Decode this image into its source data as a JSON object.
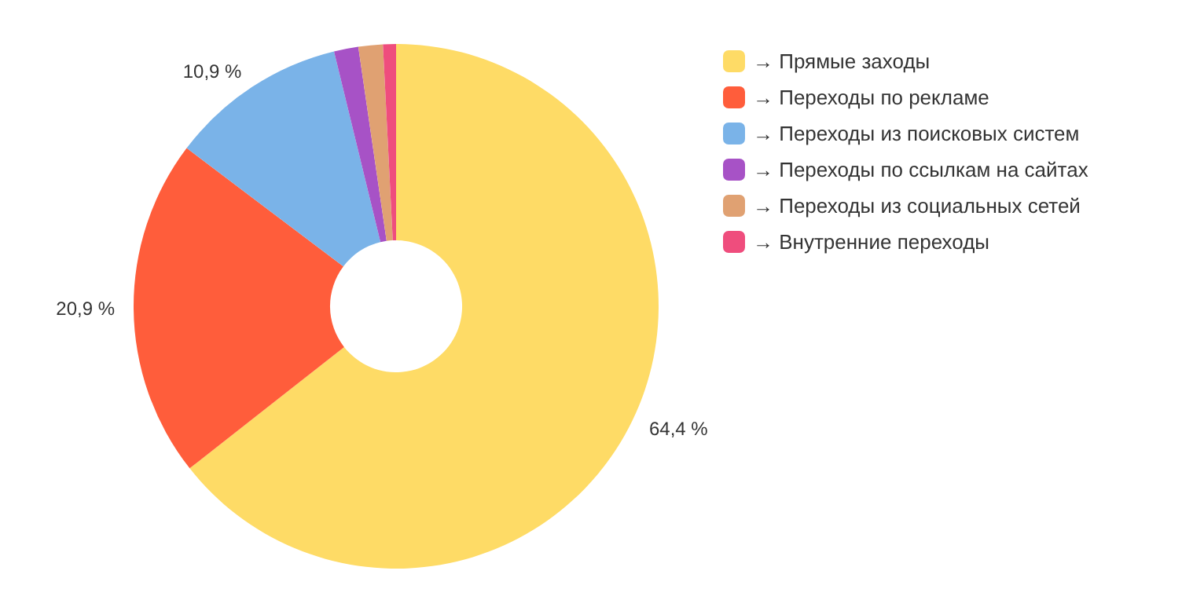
{
  "chart_data": {
    "type": "donut",
    "categories": [
      "→ Прямые заходы",
      "→ Переходы по рекламе",
      "→ Переходы из поисковых систем",
      "→ Переходы по ссылкам на сайтах",
      "→ Переходы из социальных сетей",
      "→ Внутренние переходы"
    ],
    "values": [
      64.4,
      20.9,
      10.9,
      1.5,
      1.5,
      0.8
    ],
    "value_labels": [
      "64,4 %",
      "20,9 %",
      "10,9 %",
      null,
      null,
      null
    ],
    "colors": [
      "#fedb66",
      "#ff5d3b",
      "#7ab3e8",
      "#a752c6",
      "#e0a172",
      "#ef4d7d"
    ],
    "legend": "right"
  }
}
